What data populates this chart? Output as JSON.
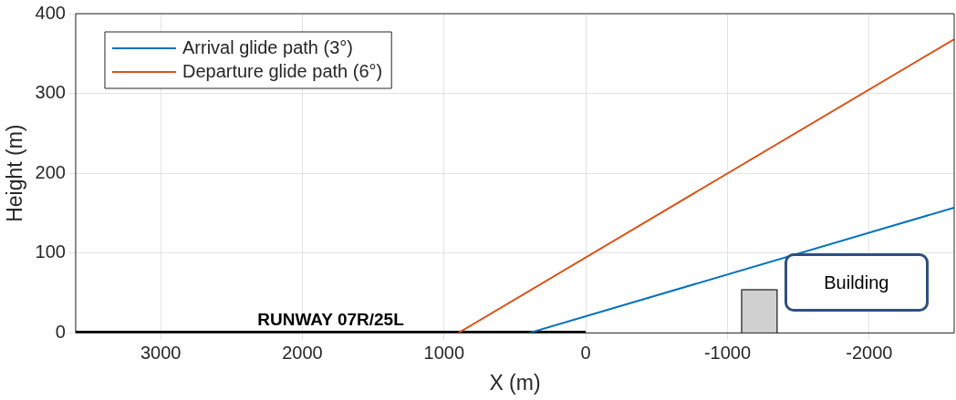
{
  "chart_data": {
    "type": "line",
    "xlabel": "X (m)",
    "ylabel": "Height (m)",
    "xlim": [
      3600,
      -2600
    ],
    "xticks": [
      3000,
      2000,
      1000,
      0,
      -1000,
      -2000
    ],
    "ylim": [
      0,
      400
    ],
    "yticks": [
      0,
      100,
      200,
      300,
      400
    ],
    "series": [
      {
        "name": "Arrival glide path (3°)",
        "color": "#0072bd",
        "x": [
          400,
          -2600
        ],
        "values": [
          0,
          157
        ]
      },
      {
        "name": "Departure glide path (6°)",
        "color": "#d95319",
        "x": [
          900,
          -2600
        ],
        "values": [
          0,
          368
        ]
      },
      {
        "color": "#000000",
        "x": [
          3600,
          0
        ],
        "values": [
          0,
          0
        ]
      },
      {
        "type": "area",
        "color": "#d0d0d0",
        "x": [
          -1100,
          -1100,
          -1350,
          -1350
        ],
        "values": [
          0,
          54,
          54,
          0
        ]
      }
    ],
    "annotations": [
      {
        "text": "RUNWAY 07R/25L",
        "x": 1800,
        "y": 0
      },
      {
        "text": "Building",
        "x": -1350,
        "y": 54
      }
    ],
    "grid": true,
    "legend": "top left",
    "marker": "none",
    "line_style": "solid"
  }
}
